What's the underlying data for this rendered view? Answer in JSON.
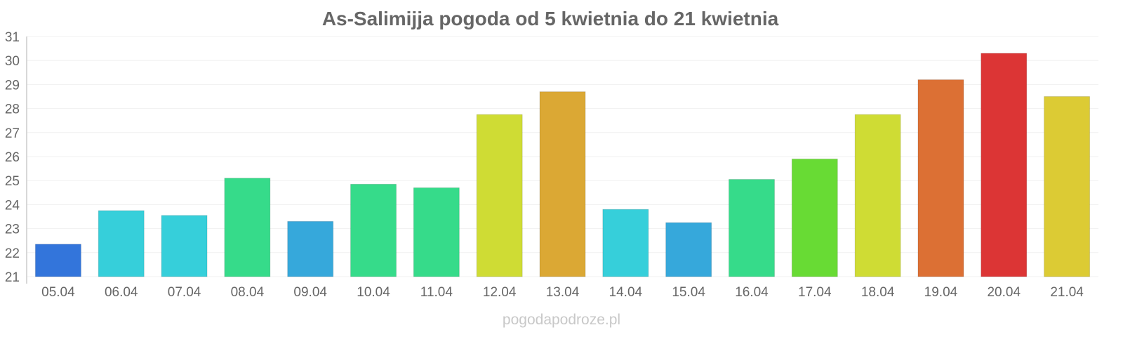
{
  "chart_data": {
    "type": "bar",
    "title": "As-Salimijja pogoda od 5 kwietnia do 21 kwietnia",
    "xlabel": "",
    "ylabel": "",
    "ylim": [
      21,
      31
    ],
    "yticks": [
      21,
      22,
      23,
      24,
      25,
      26,
      27,
      28,
      29,
      30,
      31
    ],
    "grid": true,
    "categories": [
      "05.04",
      "06.04",
      "07.04",
      "08.04",
      "09.04",
      "10.04",
      "11.04",
      "12.04",
      "13.04",
      "14.04",
      "15.04",
      "16.04",
      "17.04",
      "18.04",
      "19.04",
      "20.04",
      "21.04"
    ],
    "values": [
      22.35,
      23.75,
      23.55,
      25.1,
      23.3,
      24.85,
      24.7,
      27.75,
      28.7,
      23.8,
      23.25,
      25.05,
      25.9,
      27.75,
      29.2,
      30.3,
      28.5
    ],
    "colors": [
      "#3375db",
      "#36cfda",
      "#36cfda",
      "#36db8a",
      "#36a8db",
      "#36db8a",
      "#36db8a",
      "#cfdc34",
      "#dba834",
      "#36cfda",
      "#36a8db",
      "#36db8a",
      "#68db34",
      "#cfdc34",
      "#dc7034",
      "#dc3535",
      "#dccb34"
    ]
  },
  "source": "pogodapodroze.pl"
}
